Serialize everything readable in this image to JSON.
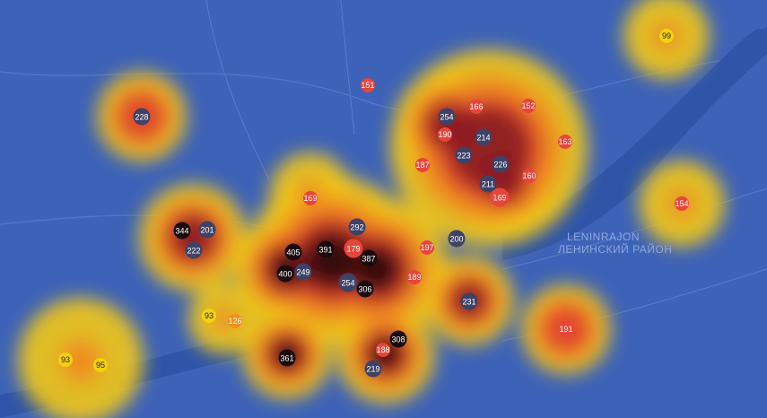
{
  "map": {
    "district_labels": [
      "LENINRAJON",
      "ЛЕНИНСКИЙ РАЙОН"
    ],
    "markers": [
      {
        "label": "99"
      },
      {
        "label": "151"
      },
      {
        "label": "228"
      },
      {
        "label": "254"
      },
      {
        "label": "166"
      },
      {
        "label": "152"
      },
      {
        "label": "190"
      },
      {
        "label": "214"
      },
      {
        "label": "163"
      },
      {
        "label": "223"
      },
      {
        "label": "226"
      },
      {
        "label": "187"
      },
      {
        "label": "160"
      },
      {
        "label": "211"
      },
      {
        "label": "169"
      },
      {
        "label": "169"
      },
      {
        "label": "154"
      },
      {
        "label": "344"
      },
      {
        "label": "201"
      },
      {
        "label": "292"
      },
      {
        "label": "200"
      },
      {
        "label": "222"
      },
      {
        "label": "391"
      },
      {
        "label": "179"
      },
      {
        "label": "197"
      },
      {
        "label": "405"
      },
      {
        "label": "387"
      },
      {
        "label": "400"
      },
      {
        "label": "249"
      },
      {
        "label": "189"
      },
      {
        "label": "254"
      },
      {
        "label": "306"
      },
      {
        "label": "231"
      },
      {
        "label": "93"
      },
      {
        "label": "126"
      },
      {
        "label": "191"
      },
      {
        "label": "308"
      },
      {
        "label": "188"
      },
      {
        "label": "93"
      },
      {
        "label": "361"
      },
      {
        "label": "95"
      },
      {
        "label": "219"
      }
    ]
  }
}
